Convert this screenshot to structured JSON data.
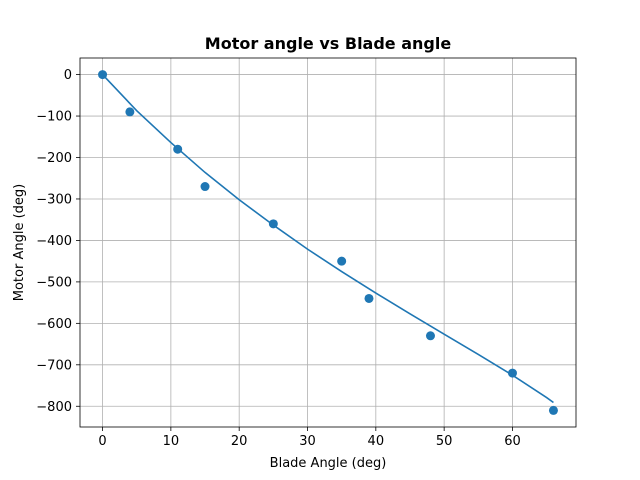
{
  "chart_data": {
    "type": "scatter",
    "title": "Motor angle vs Blade angle",
    "xlabel": "Blade Angle (deg)",
    "ylabel": "Motor Angle (deg)",
    "xlim": [
      -3.3,
      69.3
    ],
    "ylim": [
      -850,
      40
    ],
    "xticks": [
      0,
      10,
      20,
      30,
      40,
      50,
      60
    ],
    "yticks": [
      0,
      -100,
      -200,
      -300,
      -400,
      -500,
      -600,
      -700,
      -800
    ],
    "xtick_labels": [
      "0",
      "10",
      "20",
      "30",
      "40",
      "50",
      "60"
    ],
    "ytick_labels": [
      "0",
      "−100",
      "−200",
      "−300",
      "−400",
      "−500",
      "−600",
      "−700",
      "−800"
    ],
    "grid": true,
    "series": [
      {
        "kind": "scatter",
        "color": "#1f77b4",
        "x": [
          0,
          4,
          11,
          15,
          25,
          35,
          39,
          48,
          60,
          66
        ],
        "y": [
          0,
          -90,
          -180,
          -270,
          -360,
          -450,
          -540,
          -630,
          -720,
          -810
        ]
      },
      {
        "kind": "line",
        "color": "#1f77b4",
        "x": [
          0,
          5,
          10,
          15,
          20,
          25,
          30,
          35,
          40,
          45,
          50,
          55,
          60,
          65,
          66
        ],
        "y": [
          0,
          -87,
          -164,
          -236,
          -302,
          -363,
          -421,
          -475,
          -527,
          -577,
          -626,
          -675,
          -725,
          -779,
          -791
        ]
      }
    ]
  }
}
